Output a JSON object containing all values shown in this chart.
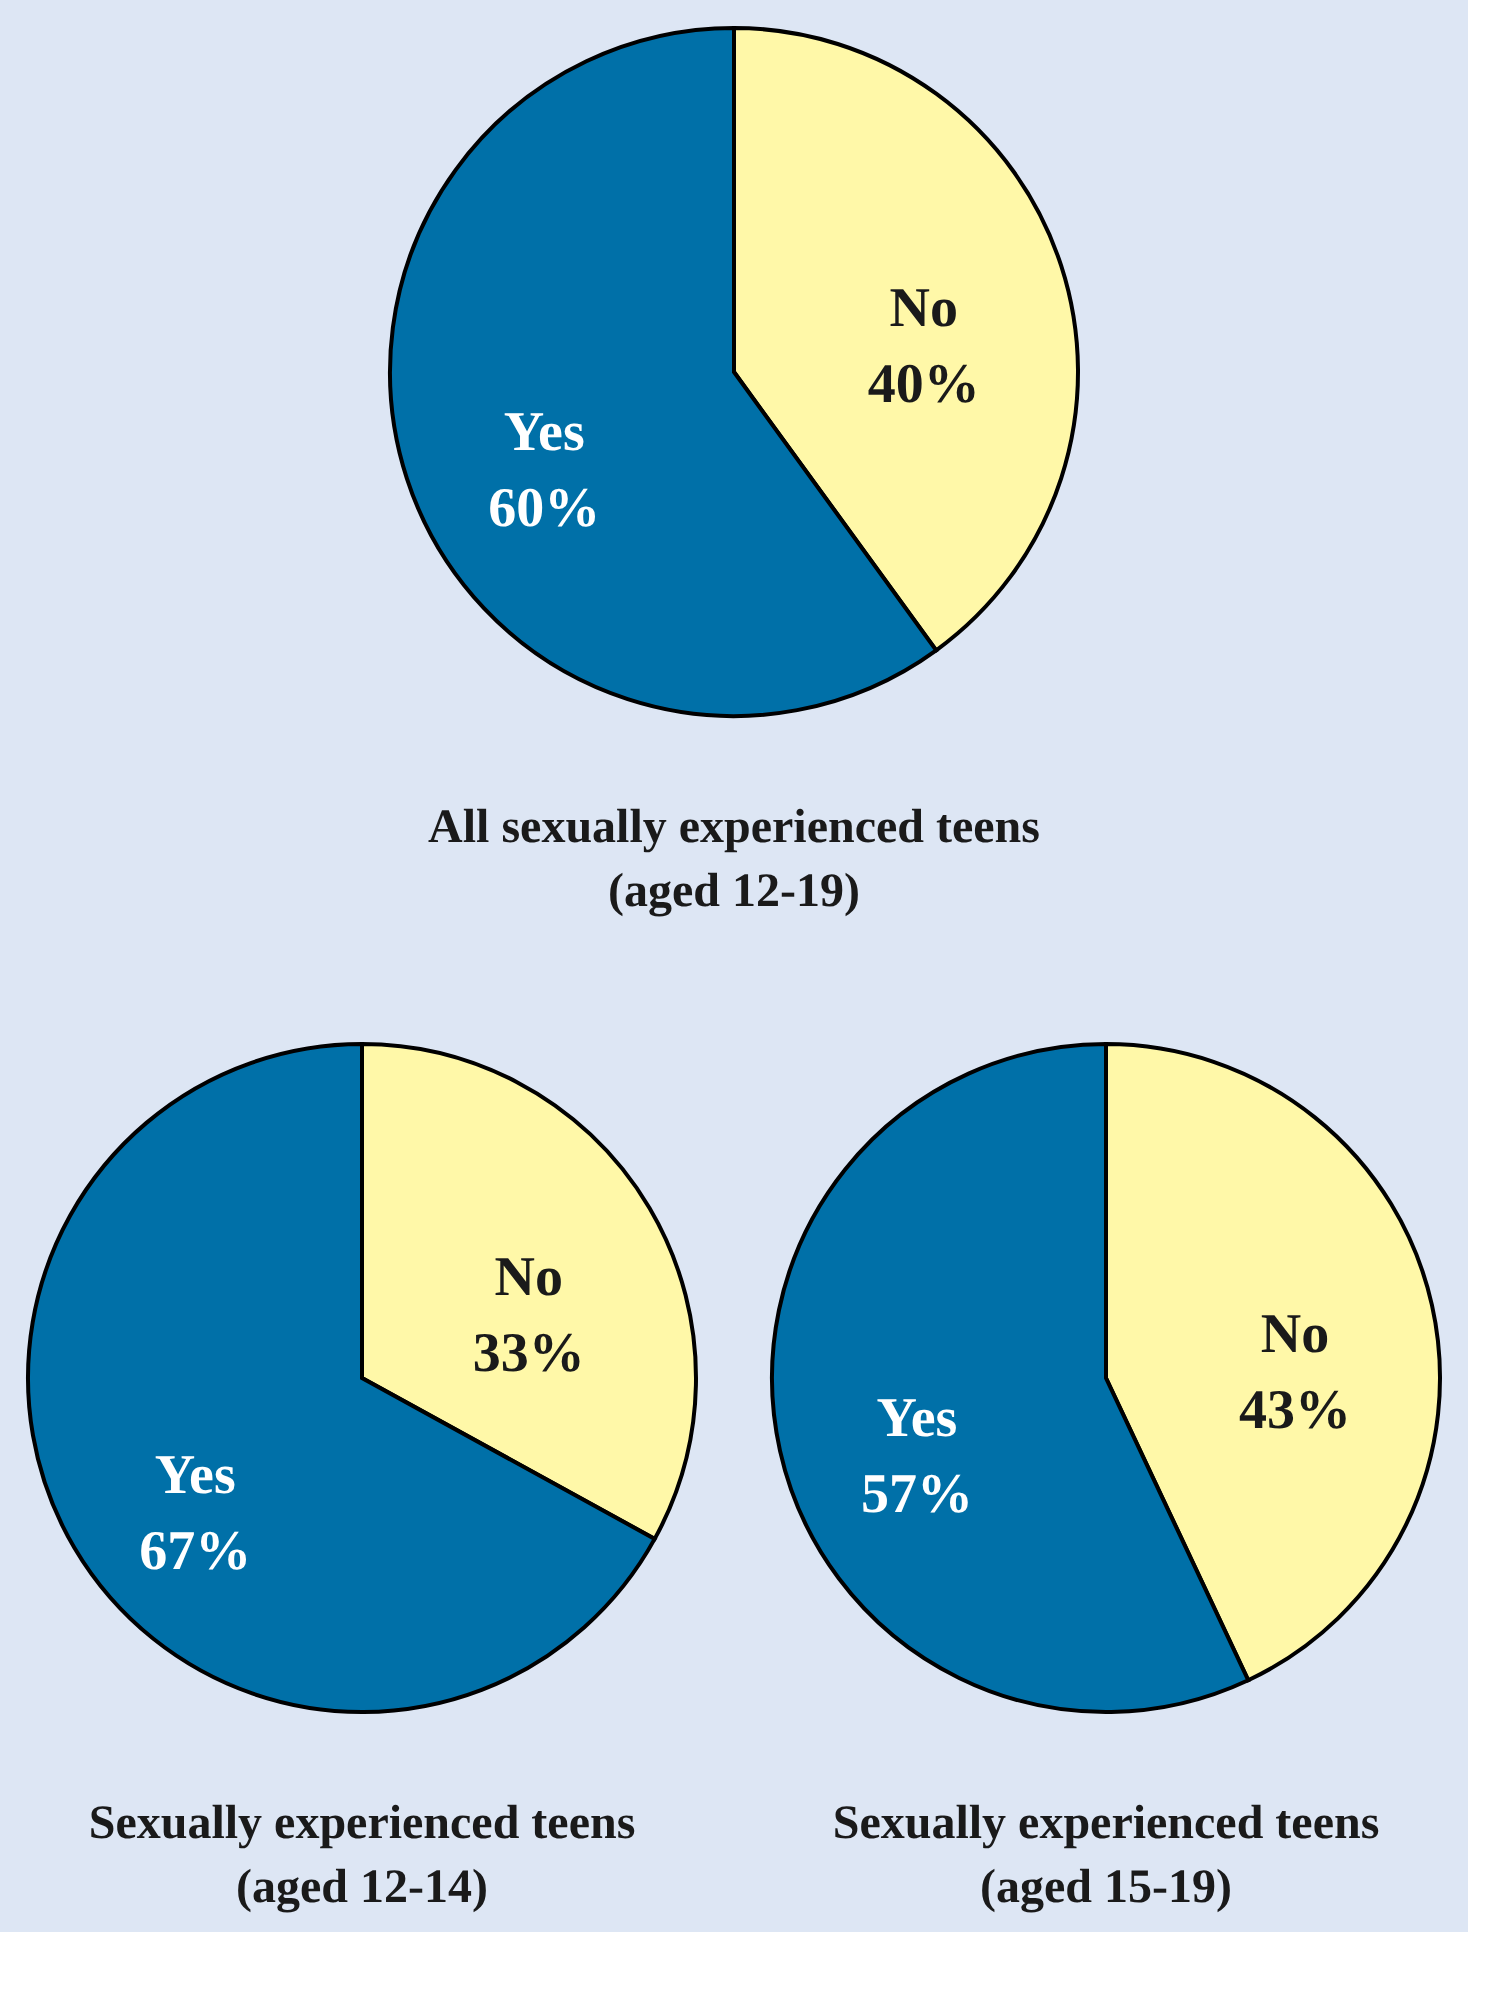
{
  "chart_data": [
    {
      "type": "pie",
      "title": "All sexually experienced teens\n(aged 12-19)",
      "categories": [
        "No",
        "Yes"
      ],
      "values": [
        40,
        60
      ],
      "value_labels": [
        "40%",
        "60%"
      ],
      "colors": [
        "#fff8a8",
        "#0070a8"
      ]
    },
    {
      "type": "pie",
      "title": "Sexually experienced teens\n(aged 12-14)",
      "categories": [
        "No",
        "Yes"
      ],
      "values": [
        33,
        67
      ],
      "value_labels": [
        "33%",
        "67%"
      ],
      "colors": [
        "#fff8a8",
        "#0070a8"
      ]
    },
    {
      "type": "pie",
      "title": "Sexually experienced teens\n(aged 15-19)",
      "categories": [
        "No",
        "Yes"
      ],
      "values": [
        43,
        57
      ],
      "value_labels": [
        "43%",
        "57%"
      ],
      "colors": [
        "#fff8a8",
        "#0070a8"
      ]
    }
  ]
}
